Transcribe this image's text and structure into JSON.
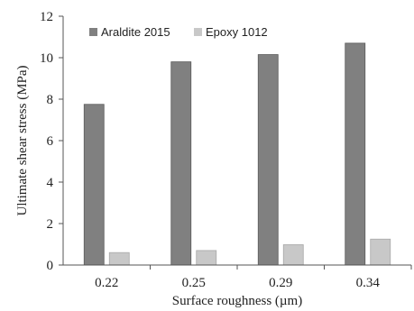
{
  "chart_data": {
    "type": "bar",
    "categories": [
      "0.22",
      "0.25",
      "0.29",
      "0.34"
    ],
    "series": [
      {
        "name": "Araldite 2015",
        "values": [
          7.75,
          9.8,
          10.15,
          10.7
        ],
        "color": "#808080"
      },
      {
        "name": "Epoxy 1012",
        "values": [
          0.6,
          0.7,
          0.98,
          1.25
        ],
        "color": "#c8c8c8"
      }
    ],
    "title": "",
    "xlabel": "Surface roughness (µm)",
    "ylabel": "Ultimate shear stress (MPa)",
    "ylim": [
      0,
      12
    ],
    "yticks": [
      "0",
      "2",
      "4",
      "6",
      "8",
      "10",
      "12"
    ],
    "grid": false,
    "legend_position": "top-left"
  }
}
